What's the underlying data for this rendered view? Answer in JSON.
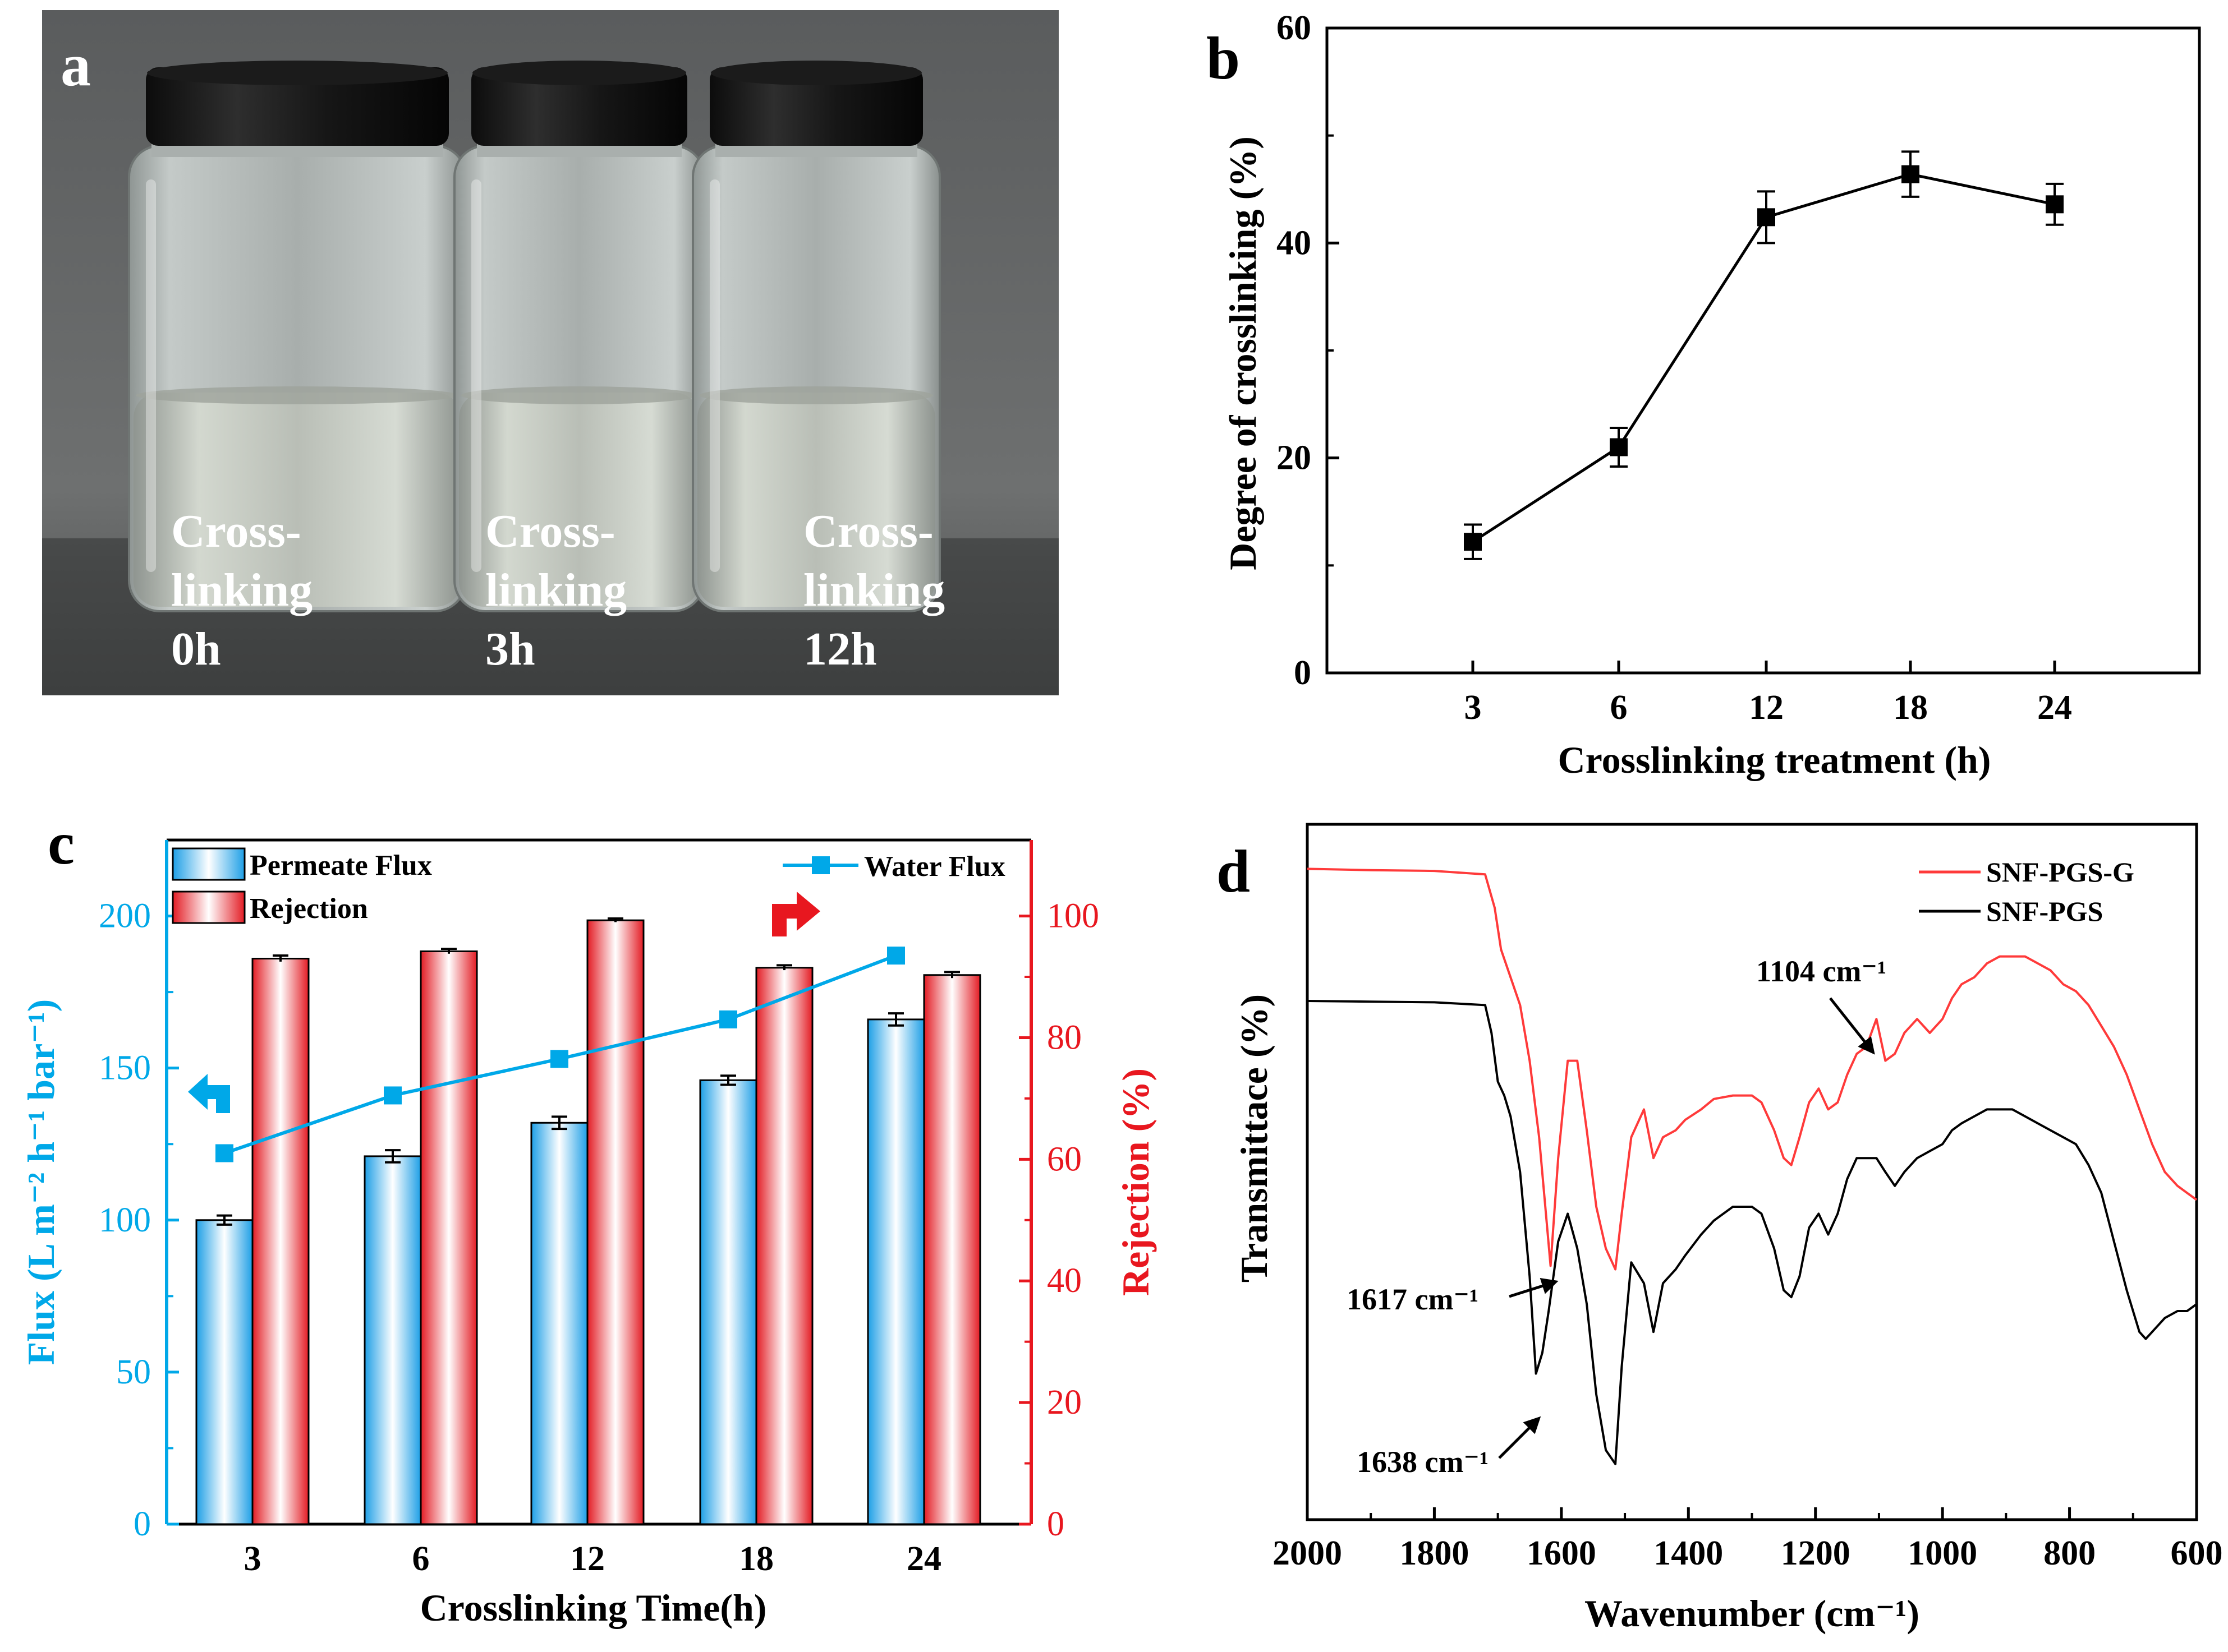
{
  "panels": {
    "a": {
      "letter": "a",
      "vials": [
        {
          "line1": "Cross-",
          "line2": "linking",
          "line3": "0h"
        },
        {
          "line1": "Cross-",
          "line2": "linking",
          "line3": "3h"
        },
        {
          "line1": "Cross-",
          "line2": "linking",
          "line3": "12h"
        }
      ]
    },
    "b": {
      "letter": "b"
    },
    "c": {
      "letter": "c"
    },
    "d": {
      "letter": "d"
    }
  },
  "colors": {
    "cyan": "#00a8e8",
    "red": "#e8171f",
    "black": "#000000",
    "spectrum_red": "#ff3a3a"
  },
  "chart_data": [
    {
      "panel": "b",
      "type": "line",
      "xlabel": "Crosslinking treatment (h)",
      "ylabel": "Degree of crosslinking (%)",
      "categories": [
        "3",
        "6",
        "12",
        "18",
        "24"
      ],
      "values": [
        12.2,
        21.0,
        42.4,
        46.4,
        43.6
      ],
      "errors": [
        1.6,
        1.8,
        2.4,
        2.1,
        1.9
      ],
      "ylim": [
        0,
        60
      ],
      "yticks": [
        0,
        20,
        40,
        60
      ]
    },
    {
      "panel": "c",
      "type": "bar",
      "xlabel": "Crosslinking  Time(h)",
      "ylabel_left": "Flux (L m⁻² h⁻¹ bar⁻¹)",
      "ylabel_right": "Rejection (%)",
      "categories": [
        "3",
        "6",
        "12",
        "18",
        "24"
      ],
      "ylim_left": [
        0,
        225
      ],
      "ylim_right": [
        0,
        112.5
      ],
      "yticks_left": [
        0,
        50,
        100,
        150,
        200
      ],
      "yticks_right": [
        0,
        20,
        40,
        60,
        80,
        100
      ],
      "series": [
        {
          "name": "Permeate Flux",
          "axis": "left",
          "kind": "bar",
          "values": [
            100,
            121,
            132,
            146,
            166
          ],
          "errors": [
            1.5,
            2,
            2,
            1.5,
            2
          ]
        },
        {
          "name": "Rejection",
          "axis": "right",
          "kind": "bar",
          "values": [
            93,
            94.2,
            99.3,
            91.5,
            90.3
          ],
          "errors": [
            0.5,
            0.4,
            0.3,
            0.4,
            0.5
          ]
        },
        {
          "name": "Water Flux",
          "axis": "left",
          "kind": "line",
          "values": [
            122,
            141,
            153,
            166,
            187
          ]
        }
      ]
    },
    {
      "panel": "d",
      "type": "line",
      "xlabel": "Wavenumber (cm⁻¹)",
      "ylabel": "Transmittace (%)",
      "xlim": [
        2000,
        600
      ],
      "xticks": [
        2000,
        1800,
        1600,
        1400,
        1200,
        1000,
        800,
        600
      ],
      "ylim": [
        0,
        1
      ],
      "series": [
        {
          "name": "SNF-PGS-G",
          "x": [
            2000,
            1900,
            1800,
            1720,
            1705,
            1695,
            1680,
            1665,
            1650,
            1635,
            1617,
            1605,
            1590,
            1575,
            1560,
            1545,
            1530,
            1515,
            1505,
            1490,
            1470,
            1455,
            1440,
            1420,
            1405,
            1380,
            1360,
            1330,
            1300,
            1285,
            1265,
            1250,
            1238,
            1225,
            1210,
            1195,
            1180,
            1165,
            1150,
            1135,
            1120,
            1104,
            1090,
            1075,
            1060,
            1040,
            1020,
            1000,
            985,
            970,
            950,
            930,
            910,
            890,
            870,
            850,
            830,
            810,
            790,
            770,
            750,
            730,
            710,
            690,
            670,
            650,
            630,
            615,
            600
          ],
          "y": [
            0.936,
            0.934,
            0.933,
            0.928,
            0.88,
            0.82,
            0.78,
            0.74,
            0.66,
            0.55,
            0.365,
            0.52,
            0.66,
            0.66,
            0.56,
            0.45,
            0.39,
            0.36,
            0.44,
            0.55,
            0.59,
            0.52,
            0.55,
            0.56,
            0.575,
            0.59,
            0.605,
            0.61,
            0.61,
            0.6,
            0.56,
            0.52,
            0.51,
            0.55,
            0.6,
            0.62,
            0.59,
            0.6,
            0.64,
            0.67,
            0.68,
            0.72,
            0.66,
            0.67,
            0.7,
            0.72,
            0.7,
            0.72,
            0.75,
            0.77,
            0.78,
            0.8,
            0.81,
            0.81,
            0.81,
            0.8,
            0.79,
            0.77,
            0.76,
            0.74,
            0.71,
            0.68,
            0.64,
            0.59,
            0.54,
            0.5,
            0.48,
            0.47,
            0.46
          ]
        },
        {
          "name": "SNF-PGS",
          "x": [
            2000,
            1900,
            1800,
            1720,
            1710,
            1700,
            1690,
            1680,
            1665,
            1650,
            1640,
            1630,
            1620,
            1605,
            1590,
            1575,
            1560,
            1545,
            1530,
            1515,
            1505,
            1490,
            1470,
            1455,
            1440,
            1420,
            1405,
            1380,
            1360,
            1330,
            1300,
            1285,
            1265,
            1250,
            1238,
            1225,
            1210,
            1195,
            1180,
            1165,
            1150,
            1135,
            1120,
            1104,
            1090,
            1075,
            1060,
            1040,
            1020,
            1000,
            985,
            970,
            950,
            930,
            910,
            890,
            870,
            850,
            830,
            810,
            790,
            770,
            750,
            730,
            710,
            690,
            680,
            670,
            650,
            630,
            615,
            600
          ],
          "y": [
            0.746,
            0.745,
            0.744,
            0.74,
            0.7,
            0.63,
            0.61,
            0.58,
            0.5,
            0.35,
            0.21,
            0.24,
            0.3,
            0.4,
            0.44,
            0.39,
            0.31,
            0.18,
            0.1,
            0.08,
            0.22,
            0.37,
            0.34,
            0.27,
            0.34,
            0.36,
            0.38,
            0.41,
            0.43,
            0.45,
            0.45,
            0.44,
            0.39,
            0.33,
            0.32,
            0.35,
            0.42,
            0.44,
            0.41,
            0.44,
            0.49,
            0.52,
            0.52,
            0.52,
            0.5,
            0.48,
            0.5,
            0.52,
            0.53,
            0.54,
            0.56,
            0.57,
            0.58,
            0.59,
            0.59,
            0.59,
            0.58,
            0.57,
            0.56,
            0.55,
            0.54,
            0.51,
            0.47,
            0.4,
            0.33,
            0.27,
            0.26,
            0.27,
            0.29,
            0.3,
            0.3,
            0.31
          ]
        }
      ],
      "annotations": [
        {
          "label": "1104 cm⁻¹"
        },
        {
          "label": "1617 cm⁻¹"
        },
        {
          "label": "1638 cm⁻¹"
        }
      ]
    }
  ]
}
